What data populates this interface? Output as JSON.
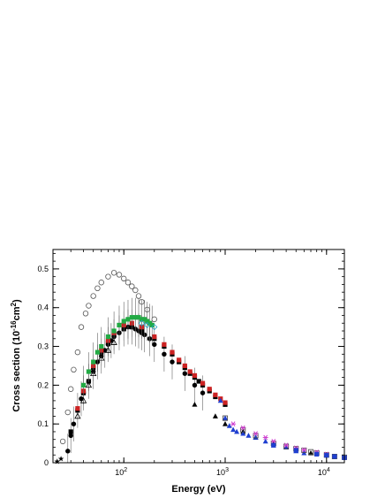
{
  "chart_data": {
    "type": "scatter",
    "title": "",
    "xlabel": {
      "main": "Energy (eV)"
    },
    "ylabel": {
      "pre": "Cross section (10",
      "exp": "-16",
      "mid": "cm",
      "exp2": "2",
      "post": ")"
    },
    "xscale": "log",
    "xlim": [
      20,
      15000
    ],
    "ylim": [
      0,
      0.55
    ],
    "x_ticks": [
      {
        "value": 100,
        "base": "10",
        "exp": "2"
      },
      {
        "value": 1000,
        "base": "10",
        "exp": "3"
      },
      {
        "value": 10000,
        "base": "10",
        "exp": "4"
      }
    ],
    "y_ticks": [
      {
        "value": 0,
        "label": "0"
      },
      {
        "value": 0.1,
        "label": "0.1"
      },
      {
        "value": 0.2,
        "label": "0.2"
      },
      {
        "value": 0.3,
        "label": "0.3"
      },
      {
        "value": 0.4,
        "label": "0.4"
      },
      {
        "value": 0.5,
        "label": "0.5"
      }
    ],
    "grid": false,
    "legend": "none",
    "series": [
      {
        "marker": "open-circle",
        "color": "#555555",
        "x": [
          25,
          28,
          30,
          32,
          35,
          38,
          42,
          45,
          50,
          55,
          60,
          70,
          80,
          90,
          100,
          110,
          120,
          130,
          140,
          150,
          170,
          200
        ],
        "y": [
          0.055,
          0.13,
          0.19,
          0.24,
          0.285,
          0.35,
          0.385,
          0.405,
          0.43,
          0.45,
          0.465,
          0.48,
          0.49,
          0.485,
          0.475,
          0.465,
          0.455,
          0.445,
          0.43,
          0.415,
          0.395,
          0.37
        ]
      },
      {
        "marker": "filled-circle",
        "color": "#000000",
        "error": 0.045,
        "x": [
          28,
          30,
          32,
          35,
          38,
          40,
          45,
          50,
          55,
          60,
          65,
          70,
          75,
          80,
          90,
          100,
          110,
          120,
          130,
          140,
          150,
          160,
          180,
          200,
          250,
          300,
          400,
          500,
          600
        ],
        "y": [
          0.03,
          0.07,
          0.1,
          0.135,
          0.165,
          0.18,
          0.21,
          0.235,
          0.26,
          0.275,
          0.29,
          0.305,
          0.315,
          0.325,
          0.335,
          0.345,
          0.35,
          0.35,
          0.345,
          0.34,
          0.335,
          0.33,
          0.32,
          0.305,
          0.28,
          0.26,
          0.23,
          0.2,
          0.18
        ]
      },
      {
        "marker": "filled-square",
        "color": "#000000",
        "x": [
          30,
          35,
          40,
          45,
          50,
          60,
          70,
          80,
          100,
          120,
          150,
          200,
          250,
          300,
          350,
          400,
          450,
          500,
          550,
          600,
          700,
          800,
          1000
        ],
        "y": [
          0.08,
          0.135,
          0.18,
          0.21,
          0.245,
          0.285,
          0.31,
          0.33,
          0.345,
          0.35,
          0.34,
          0.32,
          0.3,
          0.28,
          0.26,
          0.245,
          0.23,
          0.22,
          0.21,
          0.2,
          0.185,
          0.17,
          0.15
        ]
      },
      {
        "marker": "filled-square",
        "color": "#cc2222",
        "x": [
          35,
          40,
          50,
          60,
          70,
          80,
          100,
          120,
          150,
          200,
          250,
          300,
          350,
          400,
          450,
          500,
          600,
          700,
          800,
          900,
          1000
        ],
        "y": [
          0.14,
          0.185,
          0.25,
          0.29,
          0.315,
          0.335,
          0.355,
          0.36,
          0.35,
          0.325,
          0.305,
          0.285,
          0.265,
          0.25,
          0.235,
          0.225,
          0.205,
          0.19,
          0.175,
          0.165,
          0.155
        ]
      },
      {
        "marker": "filled-square",
        "color": "#22aa44",
        "error": 0.05,
        "x": [
          40,
          45,
          50,
          55,
          60,
          70,
          80,
          90,
          100,
          110,
          120,
          130,
          140,
          150,
          160,
          170,
          180,
          190
        ],
        "y": [
          0.2,
          0.235,
          0.26,
          0.285,
          0.3,
          0.325,
          0.34,
          0.355,
          0.365,
          0.37,
          0.375,
          0.375,
          0.375,
          0.37,
          0.37,
          0.365,
          0.36,
          0.355
        ]
      },
      {
        "marker": "open-triangle",
        "color": "#000000",
        "x": [
          35,
          40,
          45,
          50,
          60,
          70,
          80
        ],
        "y": [
          0.12,
          0.16,
          0.2,
          0.23,
          0.27,
          0.29,
          0.31
        ]
      },
      {
        "marker": "filled-triangle",
        "color": "#000000",
        "x": [
          500,
          800,
          1000,
          1500,
          2000,
          3000,
          4000,
          5000,
          7000,
          10000
        ],
        "y": [
          0.15,
          0.12,
          0.1,
          0.08,
          0.065,
          0.05,
          0.04,
          0.035,
          0.025,
          0.02
        ]
      },
      {
        "marker": "filled-triangle",
        "color": "#1f3fd0",
        "x": [
          900,
          1000,
          1100,
          1200,
          1300,
          1500,
          1700,
          2000,
          2500,
          3000,
          4000,
          5000,
          6000
        ],
        "y": [
          0.16,
          0.115,
          0.095,
          0.085,
          0.08,
          0.075,
          0.07,
          0.065,
          0.055,
          0.045,
          0.04,
          0.03,
          0.025
        ]
      },
      {
        "marker": "open-square",
        "color": "#444444",
        "x": [
          1000,
          1500,
          2000,
          3000,
          4000,
          5000,
          6000,
          7000,
          8000,
          10000,
          12000,
          15000
        ],
        "y": [
          0.115,
          0.085,
          0.07,
          0.05,
          0.042,
          0.036,
          0.032,
          0.028,
          0.025,
          0.02,
          0.016,
          0.014
        ]
      },
      {
        "marker": "asterisk",
        "color": "#cc33cc",
        "x": [
          1200,
          1500,
          2000,
          2500,
          3000,
          4000,
          5000,
          6000,
          8000,
          10000
        ],
        "y": [
          0.1,
          0.09,
          0.075,
          0.065,
          0.055,
          0.045,
          0.038,
          0.033,
          0.027,
          0.022
        ]
      },
      {
        "marker": "filled-square",
        "color": "#1f3fd0",
        "x": [
          3000,
          5000,
          8000,
          10000,
          12000,
          15000
        ],
        "y": [
          0.045,
          0.032,
          0.022,
          0.019,
          0.016,
          0.013
        ]
      },
      {
        "marker": "star",
        "color": "#000000",
        "x": [
          22,
          24
        ],
        "y": [
          0.003,
          0.01
        ]
      },
      {
        "marker": "open-diamond",
        "color": "#20a0c0",
        "x": [
          150,
          170,
          200
        ],
        "y": [
          0.36,
          0.355,
          0.35
        ]
      }
    ]
  }
}
